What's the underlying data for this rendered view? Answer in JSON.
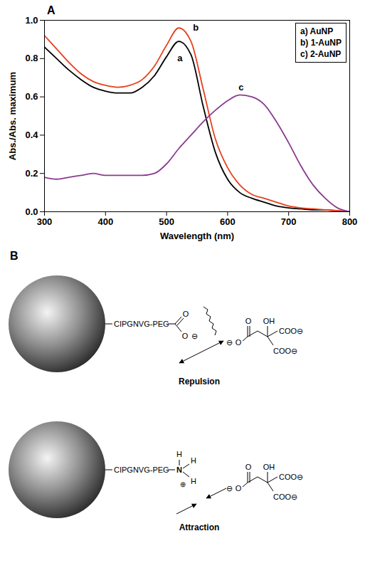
{
  "chart_data": {
    "type": "line",
    "panel_label": "A",
    "x_label": "Wavelength (nm)",
    "y_label": "Abs./Abs. maximum",
    "x": [
      300,
      320,
      340,
      360,
      380,
      400,
      420,
      440,
      460,
      480,
      500,
      520,
      540,
      560,
      580,
      600,
      620,
      640,
      660,
      680,
      700,
      720,
      740,
      760,
      780,
      800
    ],
    "series": [
      {
        "name": "a) AuNP",
        "color": "#000000",
        "values": [
          0.86,
          0.8,
          0.74,
          0.69,
          0.65,
          0.63,
          0.62,
          0.62,
          0.65,
          0.71,
          0.81,
          0.89,
          0.82,
          0.55,
          0.31,
          0.17,
          0.1,
          0.07,
          0.05,
          0.03,
          0.02,
          0.015,
          0.01,
          0.01,
          0.005,
          0
        ]
      },
      {
        "name": "b) 1-AuNP",
        "color": "#e8401c",
        "values": [
          0.92,
          0.85,
          0.78,
          0.72,
          0.68,
          0.66,
          0.65,
          0.66,
          0.69,
          0.76,
          0.87,
          0.96,
          0.89,
          0.64,
          0.38,
          0.23,
          0.14,
          0.09,
          0.07,
          0.05,
          0.03,
          0.02,
          0.015,
          0.01,
          0.005,
          0
        ]
      },
      {
        "name": "c) 2-AuNP",
        "color": "#8b3a8f",
        "values": [
          0.18,
          0.17,
          0.18,
          0.19,
          0.2,
          0.19,
          0.19,
          0.19,
          0.19,
          0.2,
          0.25,
          0.33,
          0.4,
          0.47,
          0.53,
          0.58,
          0.61,
          0.6,
          0.56,
          0.47,
          0.36,
          0.24,
          0.14,
          0.07,
          0.02,
          0
        ]
      }
    ],
    "annotations": [
      {
        "text": "a",
        "x": 522,
        "y": 0.8
      },
      {
        "text": "b",
        "x": 548,
        "y": 0.96
      },
      {
        "text": "c",
        "x": 622,
        "y": 0.65
      }
    ],
    "xlim": [
      300,
      800
    ],
    "xticks": [
      300,
      400,
      500,
      600,
      700,
      800
    ],
    "ylim": [
      0,
      1.0
    ],
    "yticks": [
      {
        "value": 0,
        "label": "0.0"
      },
      0.2,
      0.4,
      0.6,
      0.8,
      {
        "value": 1.0,
        "label": "1.0"
      }
    ],
    "legend": "top-right",
    "grid": false
  },
  "diagram": {
    "panel_label": "B",
    "panels": [
      {
        "linker": "CIPGNVG-PEG",
        "group_atoms": [
          "O",
          "O",
          "⊖"
        ],
        "citrate_atoms": [
          "⊖",
          "O",
          "O",
          "OH",
          "COO⊖",
          "COO⊖"
        ],
        "interaction": "Repulsion"
      },
      {
        "linker": "CIPGNVG-PEG",
        "group_atoms": [
          "H",
          "H",
          "H",
          "N",
          "⊕"
        ],
        "citrate_atoms": [
          "⊖",
          "O",
          "O",
          "OH",
          "COO⊖",
          "COO⊖"
        ],
        "interaction": "Attraction"
      }
    ]
  }
}
